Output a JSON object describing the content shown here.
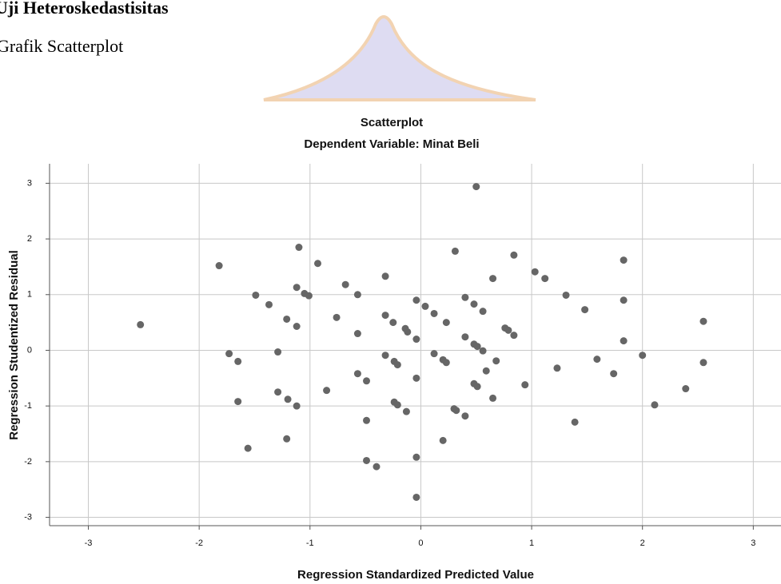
{
  "document": {
    "heading": "Uji Heteroskedastisitas",
    "subheading": "Grafik Scatterplot"
  },
  "chart_data": {
    "type": "scatter",
    "title": "Scatterplot",
    "subtitle": "Dependent Variable: Minat Beli",
    "xlabel": "Regression Standardized Predicted Value",
    "ylabel": "Regression Studentized Residual",
    "color": "#666666",
    "grid": true,
    "xlim": [
      -3.35,
      3.25
    ],
    "ylim": [
      -3.15,
      3.35
    ],
    "xticks": [
      -3,
      -2,
      -1,
      0,
      1,
      2,
      3
    ],
    "yticks": [
      -3,
      -2,
      -1,
      0,
      1,
      2,
      3
    ],
    "x": [
      -2.53,
      -1.82,
      -1.73,
      -1.65,
      -1.65,
      -1.56,
      -1.49,
      -1.37,
      -1.29,
      -1.29,
      -1.21,
      -1.2,
      -1.21,
      -1.12,
      -1.12,
      -1.12,
      -1.1,
      -1.05,
      -1.01,
      -0.93,
      -0.85,
      -0.76,
      -0.68,
      -0.57,
      -0.57,
      -0.57,
      -0.49,
      -0.49,
      -0.49,
      -0.4,
      -0.32,
      -0.32,
      -0.32,
      -0.25,
      -0.24,
      -0.21,
      -0.24,
      -0.21,
      -0.14,
      -0.12,
      -0.13,
      -0.04,
      -0.04,
      -0.04,
      -0.04,
      -0.04,
      0.04,
      0.12,
      0.12,
      0.2,
      0.23,
      0.23,
      0.2,
      0.31,
      0.3,
      0.32,
      0.4,
      0.4,
      0.4,
      0.48,
      0.48,
      0.51,
      0.48,
      0.51,
      0.5,
      0.56,
      0.56,
      0.59,
      0.65,
      0.65,
      0.68,
      0.76,
      0.79,
      0.84,
      0.84,
      0.94,
      1.03,
      1.12,
      1.23,
      1.31,
      1.39,
      1.48,
      1.59,
      1.74,
      1.83,
      1.83,
      1.83,
      2.0,
      2.11,
      2.39,
      2.55,
      2.55
    ],
    "values": [
      0.46,
      1.52,
      -0.06,
      -0.2,
      -0.92,
      -1.76,
      0.99,
      0.82,
      -0.03,
      -0.75,
      0.56,
      -0.88,
      -1.59,
      1.13,
      0.43,
      -1.0,
      1.85,
      1.02,
      0.98,
      1.56,
      -0.72,
      0.59,
      1.18,
      1.0,
      0.3,
      -0.42,
      -0.55,
      -1.26,
      -1.98,
      -2.09,
      1.33,
      0.63,
      -0.09,
      0.5,
      -0.2,
      -0.26,
      -0.93,
      -0.98,
      0.39,
      0.33,
      -1.1,
      0.9,
      0.2,
      -0.5,
      -1.92,
      -2.64,
      0.79,
      0.66,
      -0.06,
      -0.17,
      -0.22,
      0.5,
      -1.62,
      1.78,
      -1.05,
      -1.08,
      0.95,
      0.24,
      -1.18,
      0.83,
      0.11,
      0.07,
      -0.6,
      -0.65,
      2.94,
      0.7,
      -0.01,
      -0.37,
      1.29,
      -0.86,
      -0.19,
      0.4,
      0.36,
      1.71,
      0.27,
      -0.62,
      1.41,
      1.29,
      -0.32,
      0.99,
      -1.29,
      0.73,
      -0.16,
      -0.42,
      1.62,
      0.9,
      0.17,
      -0.09,
      -0.98,
      -0.69,
      0.52,
      -0.22
    ]
  }
}
